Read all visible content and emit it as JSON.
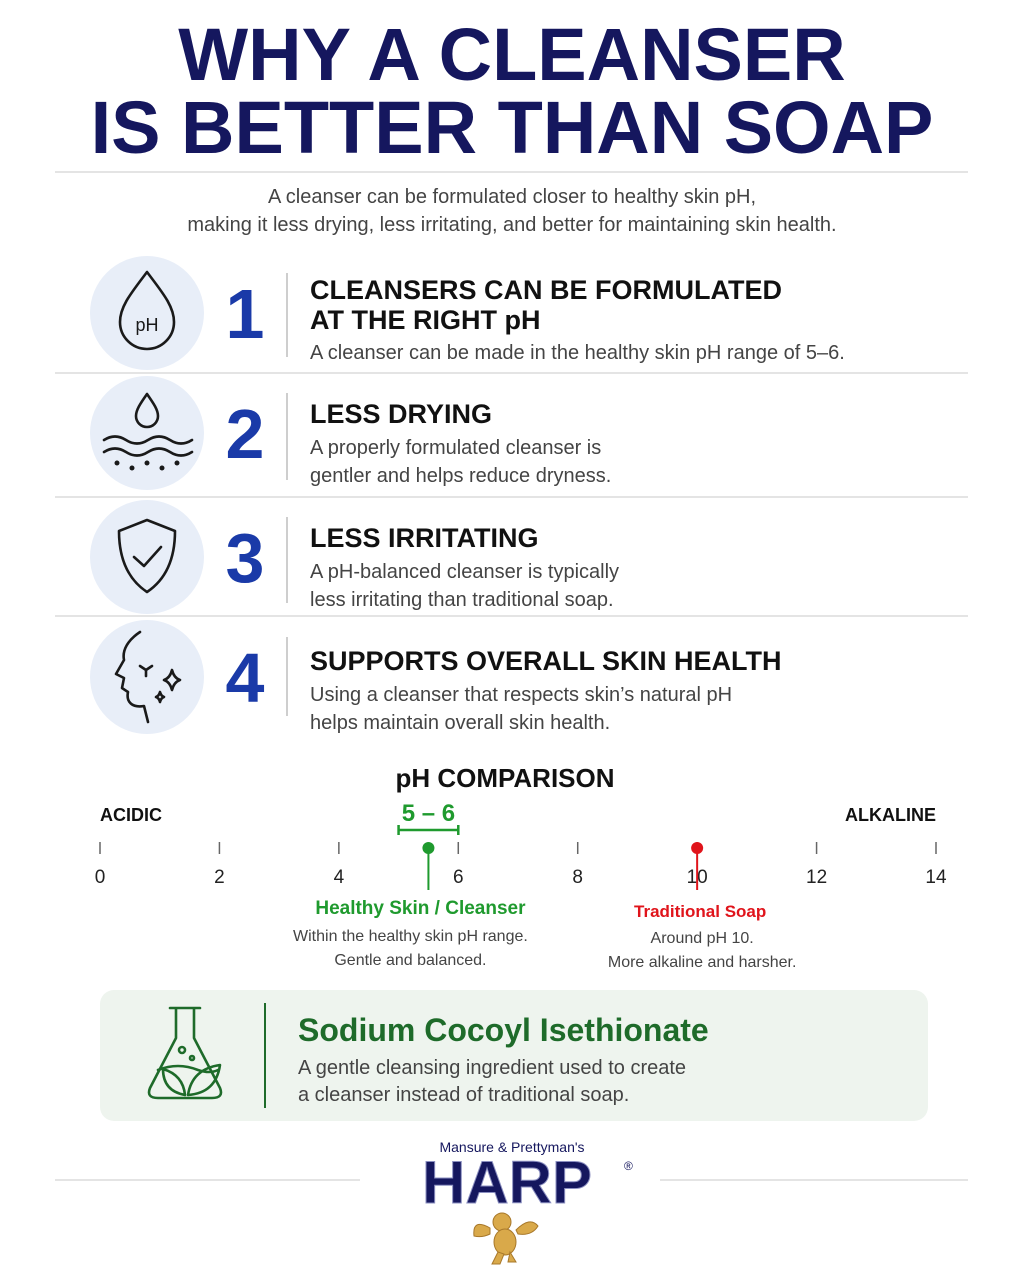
{
  "header": {
    "title_lines": [
      "WHY A CLEANSER",
      "IS BETTER THAN SOAP"
    ],
    "subtitle_lines": [
      "A cleanser can be formulated closer to healthy skin pH,",
      "making it less drying, less irritating, and better for maintaining skin health."
    ]
  },
  "benefits": [
    {
      "number": "1",
      "icon_label": "pH",
      "title_lines": [
        "CLEANSERS CAN BE FORMULATED",
        "AT THE RIGHT pH"
      ],
      "description_lines": [
        "A cleanser can be made in the healthy skin pH range of 5–6."
      ]
    },
    {
      "number": "2",
      "title_lines": [
        "LESS DRYING"
      ],
      "description_lines": [
        "A properly formulated cleanser is",
        "gentler and helps reduce dryness."
      ]
    },
    {
      "number": "3",
      "title_lines": [
        "LESS IRRITATING"
      ],
      "description_lines": [
        "A pH-balanced cleanser is typically",
        "less irritating than traditional soap."
      ]
    },
    {
      "number": "4",
      "title_lines": [
        "SUPPORTS OVERALL SKIN HEALTH"
      ],
      "description_lines": [
        "Using a cleanser that respects skin’s natural pH",
        "helps maintain overall skin health."
      ]
    }
  ],
  "ph_chart": {
    "type": "scale",
    "title": "pH COMPARISON",
    "left_label": "ACIDIC",
    "right_label": "ALKALINE",
    "xlim": [
      0,
      14
    ],
    "xticks": [
      0,
      2,
      4,
      6,
      8,
      10,
      12,
      14
    ],
    "healthy": {
      "range": [
        5,
        6
      ],
      "range_label": "5 – 6",
      "value": 5.5,
      "color": "#1f9a2e",
      "name": "Healthy Skin / Cleanser",
      "description_lines": [
        "Within the healthy skin pH range.",
        "Gentle and balanced."
      ]
    },
    "soap": {
      "value": 10,
      "color": "#e0141b",
      "name": "Traditional Soap",
      "description_lines": [
        "Around pH 10.",
        "More alkaline and harsher."
      ]
    }
  },
  "ingredient": {
    "name": "Sodium Cocoyl Isethionate",
    "description_lines": [
      "A gentle cleansing ingredient used to create",
      "a cleanser instead of traditional soap."
    ]
  },
  "footer": {
    "brand_small": "Mansure & Prettyman's",
    "brand": "HARP",
    "trademark": "®"
  }
}
